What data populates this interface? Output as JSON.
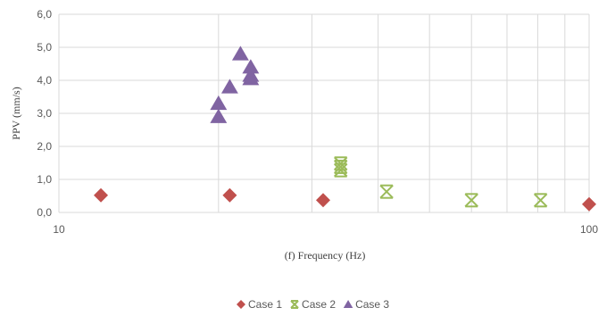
{
  "chart_data": {
    "type": "scatter",
    "title": "",
    "xlabel": "(f) Frequency (Hz)",
    "ylabel": "PPV (mm/s)",
    "x_scale": "log",
    "xlim": [
      10,
      100
    ],
    "ylim": [
      0,
      6
    ],
    "x_ticks": [
      {
        "value": 10,
        "label": "10"
      },
      {
        "value": 100,
        "label": "100"
      }
    ],
    "y_ticks": [
      {
        "value": 0,
        "label": "0,0"
      },
      {
        "value": 1,
        "label": "1,0"
      },
      {
        "value": 2,
        "label": "2,0"
      },
      {
        "value": 3,
        "label": "3,0"
      },
      {
        "value": 4,
        "label": "4,0"
      },
      {
        "value": 5,
        "label": "5,0"
      },
      {
        "value": 6,
        "label": "6,0"
      }
    ],
    "grid": true,
    "legend_position": "bottom",
    "series": [
      {
        "name": "Case 1",
        "marker": "diamond",
        "color": "#C0504D",
        "points": [
          {
            "x": 12,
            "y": 0.52
          },
          {
            "x": 21,
            "y": 0.52
          },
          {
            "x": 31.5,
            "y": 0.37
          },
          {
            "x": 100,
            "y": 0.25
          }
        ]
      },
      {
        "name": "Case 2",
        "marker": "asterisk",
        "color": "#9BBB59",
        "points": [
          {
            "x": 34,
            "y": 1.28
          },
          {
            "x": 34,
            "y": 1.38
          },
          {
            "x": 34,
            "y": 1.48
          },
          {
            "x": 41.5,
            "y": 0.63
          },
          {
            "x": 60,
            "y": 0.37
          },
          {
            "x": 81,
            "y": 0.37
          }
        ]
      },
      {
        "name": "Case 3",
        "marker": "triangle",
        "color": "#8064A2",
        "points": [
          {
            "x": 20,
            "y": 2.9
          },
          {
            "x": 20,
            "y": 3.3
          },
          {
            "x": 21,
            "y": 3.8
          },
          {
            "x": 22,
            "y": 4.8
          },
          {
            "x": 23,
            "y": 4.05
          },
          {
            "x": 23,
            "y": 4.15
          },
          {
            "x": 23,
            "y": 4.4
          }
        ]
      }
    ]
  }
}
